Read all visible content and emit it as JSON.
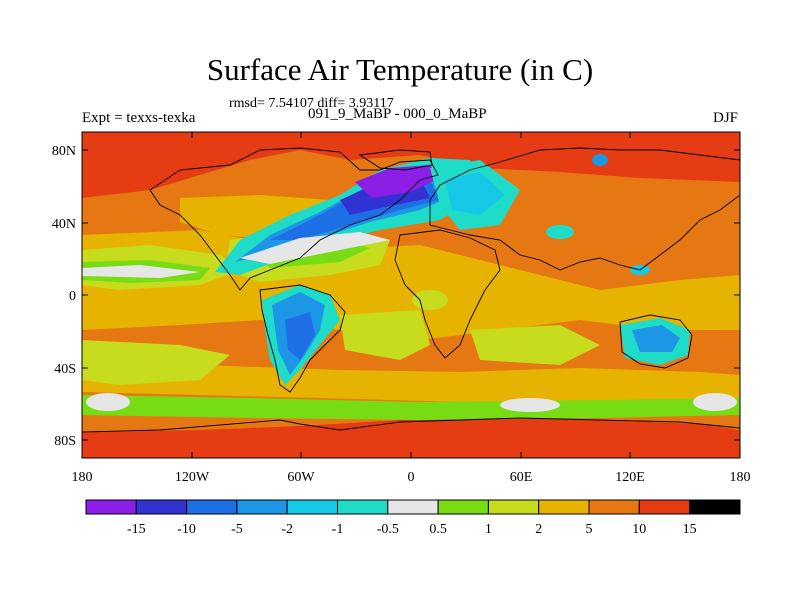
{
  "title": "Surface Air Temperature (in C)",
  "stats": "rmsd= 7.54107 diff= 3.93117",
  "subtitle": "091_9_MaBP - 000_0_MaBP",
  "experiment": "Expt = texxs-texka",
  "season": "DJF",
  "axes": {
    "lon_labels": [
      "180",
      "120W",
      "60W",
      "0",
      "60E",
      "120E",
      "180"
    ],
    "lat_labels": [
      "80N",
      "40N",
      "0",
      "40S",
      "80S"
    ]
  },
  "colorbar": {
    "labels": [
      "-15",
      "-10",
      "-5",
      "-2",
      "-1",
      "-0.5",
      "0.5",
      "1",
      "2",
      "5",
      "10",
      "15"
    ],
    "colors": [
      "#8c1ee6",
      "#3232d2",
      "#1e6ee6",
      "#1e96e6",
      "#14c8e6",
      "#1edcc8",
      "#e6e6e6",
      "#78dc14",
      "#c8dc1e",
      "#e6b400",
      "#e67814",
      "#e63c14"
    ]
  },
  "palette": {
    "orange": "#e67814",
    "red": "#e63c14",
    "gold": "#e6b400",
    "lime": "#c8dc1e",
    "green": "#78dc14",
    "white": "#e6e6e6",
    "cyan": "#1edcc8",
    "lightblue": "#14c8e6",
    "blue": "#1e96e6",
    "midblue": "#1e6ee6",
    "darkblue": "#3232d2",
    "purple": "#8c1ee6"
  }
}
